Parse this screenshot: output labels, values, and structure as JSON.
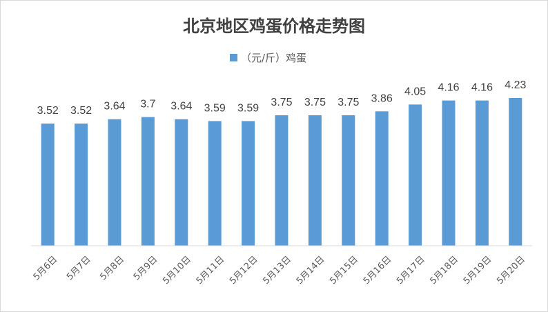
{
  "chart_data": {
    "type": "bar",
    "title": "北京地区鸡蛋价格走势图",
    "legend_position": "top",
    "grid": false,
    "series": [
      {
        "name": "（元/斤）鸡蛋",
        "color": "#5b9bd5",
        "values": [
          3.52,
          3.52,
          3.64,
          3.7,
          3.64,
          3.59,
          3.59,
          3.75,
          3.75,
          3.75,
          3.86,
          4.05,
          4.16,
          4.16,
          4.23
        ]
      }
    ],
    "categories": [
      "5月6日",
      "5月7日",
      "5月8日",
      "5月9日",
      "5月10日",
      "5月11日",
      "5月12日",
      "5月13日",
      "5月14日",
      "5月15日",
      "5月16日",
      "5月17日",
      "5月18日",
      "5月19日",
      "5月20日"
    ],
    "data_labels": [
      "3.52",
      "3.52",
      "3.64",
      "3.7",
      "3.64",
      "3.59",
      "3.59",
      "3.75",
      "3.75",
      "3.75",
      "3.86",
      "4.05",
      "4.16",
      "4.16",
      "4.23"
    ]
  }
}
